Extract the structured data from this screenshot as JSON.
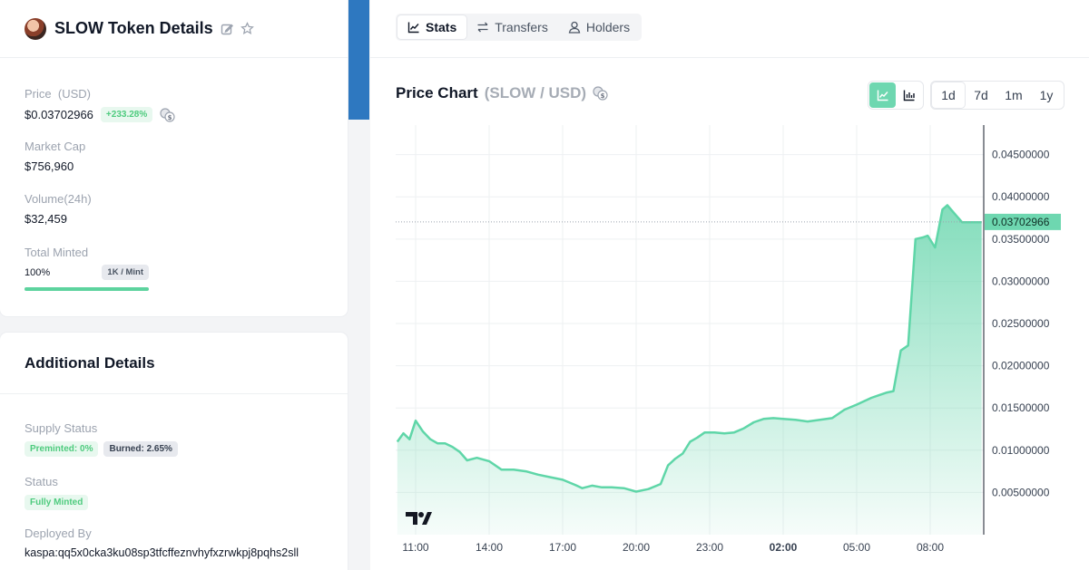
{
  "token_card": {
    "title": "SLOW Token Details",
    "price_label": "Price",
    "price_unit": "(USD)",
    "price_value": "$0.03702966",
    "price_change": "+233.28%",
    "market_cap_label": "Market Cap",
    "market_cap_value": "$756,960",
    "volume_label": "Volume(24h)",
    "volume_value": "$32,459",
    "minted_label": "Total Minted",
    "minted_percent": "100%",
    "minted_fraction": 1.0,
    "mint_limit": "1K / Mint"
  },
  "additional": {
    "title": "Additional Details",
    "supply_label": "Supply Status",
    "preminted": "Preminted: 0%",
    "burned": "Burned: 2.65%",
    "status_label": "Status",
    "status_value": "Fully Minted",
    "deployed_label": "Deployed By",
    "deployed_value": "kaspa:qq5x0cka3ku08sp3tfcffeznvhyfxzrwkpj8pqhs2sll"
  },
  "tabs": [
    {
      "label": "Stats",
      "icon": "line-chart-icon"
    },
    {
      "label": "Transfers",
      "icon": "transfer-arrows-icon"
    },
    {
      "label": "Holders",
      "icon": "user-icon"
    }
  ],
  "chart_header": {
    "title": "Price Chart",
    "pair": "(SLOW / USD)",
    "ranges": [
      "1d",
      "7d",
      "1m",
      "1y"
    ],
    "active_range": "1d"
  },
  "colors": {
    "accent": "#6ed7b0",
    "line": "#5fd6a8",
    "positive": "#4ecb7e"
  },
  "chart_data": {
    "type": "area",
    "x_ticks": [
      "11:00",
      "14:00",
      "17:00",
      "20:00",
      "23:00",
      "02:00",
      "05:00",
      "08:00"
    ],
    "x_tick_hours": [
      0,
      3,
      6,
      9,
      12,
      15,
      18,
      21
    ],
    "bold_tick": "02:00",
    "y_ticks": [
      "0.00500000",
      "0.01000000",
      "0.01500000",
      "0.02000000",
      "0.02500000",
      "0.03000000",
      "0.03500000",
      "0.04000000",
      "0.04500000"
    ],
    "y_tick_values": [
      0.005,
      0.01,
      0.015,
      0.02,
      0.025,
      0.03,
      0.035,
      0.04,
      0.045
    ],
    "ylim": [
      0.0,
      0.0485
    ],
    "current_price": 0.03702966,
    "current_label": "0.03702966",
    "grid": true,
    "x_hours": [
      -0.75,
      -0.5,
      -0.25,
      0.0,
      0.3,
      0.6,
      0.9,
      1.2,
      1.5,
      1.8,
      2.1,
      2.5,
      3.0,
      3.5,
      4.0,
      4.5,
      5.0,
      5.5,
      6.0,
      6.5,
      6.8,
      7.2,
      7.6,
      8.0,
      8.5,
      9.0,
      9.5,
      10.0,
      10.3,
      10.6,
      10.9,
      11.2,
      11.5,
      11.8,
      12.2,
      12.6,
      13.0,
      13.4,
      13.8,
      14.2,
      14.6,
      15.0,
      15.5,
      16.0,
      16.5,
      17.0,
      17.5,
      18.0,
      18.3,
      18.6,
      18.9,
      19.2,
      19.5,
      19.8,
      20.1,
      20.4,
      20.7,
      20.9,
      21.2,
      21.5,
      21.7,
      22.0,
      22.3,
      22.6,
      22.9,
      23.1
    ],
    "values": [
      0.011,
      0.012,
      0.0113,
      0.0135,
      0.0122,
      0.0113,
      0.0108,
      0.0108,
      0.0104,
      0.0098,
      0.0088,
      0.0091,
      0.0087,
      0.0077,
      0.0077,
      0.0075,
      0.0071,
      0.0068,
      0.0065,
      0.0059,
      0.0055,
      0.0058,
      0.0056,
      0.0056,
      0.0055,
      0.0051,
      0.0054,
      0.006,
      0.0082,
      0.009,
      0.0096,
      0.011,
      0.0115,
      0.0121,
      0.0121,
      0.012,
      0.0121,
      0.0126,
      0.0133,
      0.0137,
      0.0138,
      0.0137,
      0.0136,
      0.0134,
      0.0136,
      0.0138,
      0.0148,
      0.0154,
      0.0158,
      0.0162,
      0.0165,
      0.0168,
      0.017,
      0.0218,
      0.0224,
      0.035,
      0.0352,
      0.0354,
      0.034,
      0.0385,
      0.039,
      0.038,
      0.037,
      0.037,
      0.037,
      0.037
    ]
  }
}
